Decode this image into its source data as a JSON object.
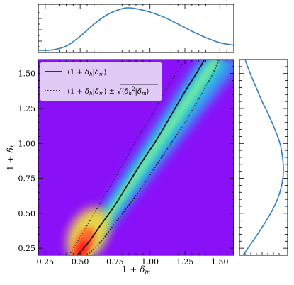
{
  "chart_data": [
    {
      "panel": "main",
      "type": "heatmap",
      "xlabel": "1 + δm",
      "ylabel": "1 + δh",
      "xlim": [
        0.2,
        1.6
      ],
      "ylim": [
        0.2,
        1.6
      ],
      "xticks": [
        "0.25",
        "0.50",
        "0.75",
        "1.00",
        "1.25",
        "1.50"
      ],
      "yticks": [
        "0.25",
        "0.50",
        "0.75",
        "1.00",
        "1.25",
        "1.50"
      ],
      "colormap": "rainbow (purple low → red high)",
      "legend_position": "top-left",
      "series": [
        {
          "name": "⟨1 + δh|δm⟩",
          "style": "solid",
          "color": "#000000",
          "x": [
            0.48,
            0.55,
            0.65,
            0.75,
            0.85,
            0.95,
            1.05,
            1.15,
            1.25,
            1.35,
            1.4
          ],
          "y": [
            0.2,
            0.28,
            0.42,
            0.56,
            0.72,
            0.88,
            1.03,
            1.2,
            1.37,
            1.53,
            1.62
          ]
        },
        {
          "name": "⟨1 + δh|δm⟩ ± √⟨δh²|δm⟩",
          "style": "dotted",
          "color": "#000000",
          "upper": {
            "x": [
              0.42,
              0.5,
              0.6,
              0.7,
              0.8,
              0.9,
              1.0,
              1.1,
              1.2,
              1.26
            ],
            "y": [
              0.2,
              0.33,
              0.5,
              0.67,
              0.84,
              1.02,
              1.18,
              1.36,
              1.52,
              1.62
            ]
          },
          "lower": {
            "x": [
              0.55,
              0.65,
              0.75,
              0.85,
              0.95,
              1.05,
              1.15,
              1.25,
              1.35,
              1.45,
              1.5
            ],
            "y": [
              0.2,
              0.3,
              0.43,
              0.56,
              0.7,
              0.85,
              1.0,
              1.15,
              1.32,
              1.5,
              1.62
            ]
          }
        }
      ]
    },
    {
      "panel": "top-marginal",
      "type": "line",
      "color": "#2f7fc1",
      "xlim": [
        0.2,
        1.6
      ],
      "x": [
        0.2,
        0.3,
        0.4,
        0.5,
        0.6,
        0.7,
        0.8,
        0.85,
        0.9,
        1.0,
        1.1,
        1.2,
        1.3,
        1.4,
        1.5,
        1.6
      ],
      "y": [
        0.0,
        0.01,
        0.1,
        0.33,
        0.62,
        0.85,
        0.98,
        1.0,
        0.98,
        0.9,
        0.78,
        0.62,
        0.45,
        0.3,
        0.18,
        0.12
      ]
    },
    {
      "panel": "right-marginal",
      "type": "line",
      "color": "#2f7fc1",
      "ylim": [
        0.2,
        1.6
      ],
      "y": [
        0.2,
        0.3,
        0.4,
        0.5,
        0.6,
        0.7,
        0.8,
        0.9,
        1.0,
        1.1,
        1.2,
        1.3,
        1.4,
        1.5,
        1.6
      ],
      "x": [
        0.05,
        0.28,
        0.5,
        0.7,
        0.86,
        0.96,
        1.0,
        0.98,
        0.92,
        0.8,
        0.66,
        0.5,
        0.36,
        0.22,
        0.1
      ]
    }
  ]
}
